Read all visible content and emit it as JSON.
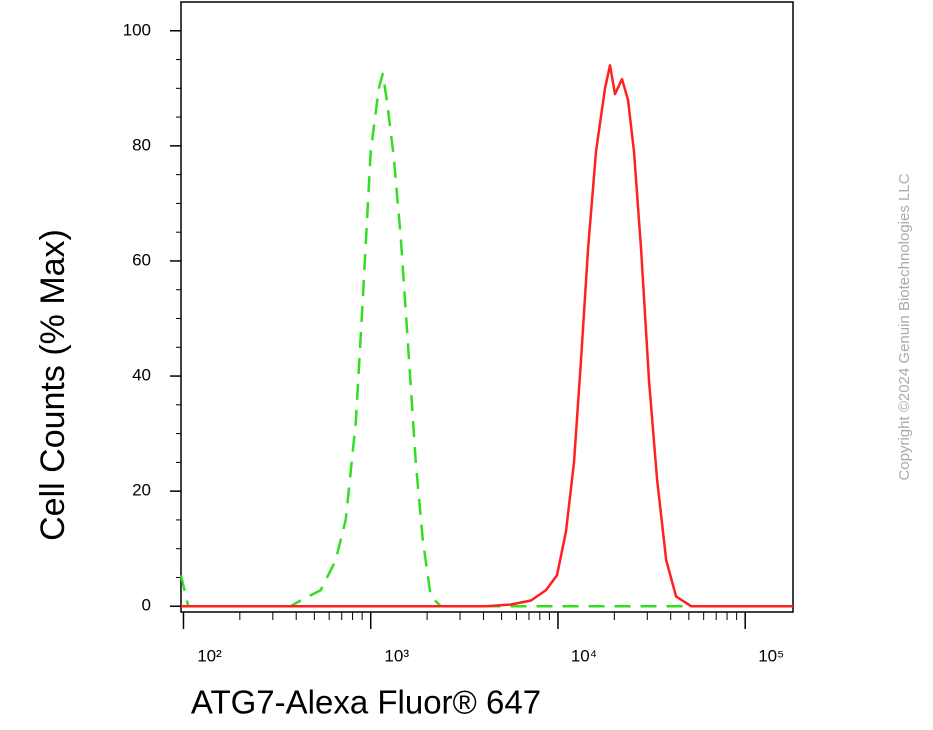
{
  "chart_data": {
    "type": "line",
    "x_label": "ATG7-Alexa Fluor® 647",
    "y_label": "Cell Counts (% Max)",
    "watermark": "Copyright ©2024 Genuin Biotechnologies LLC",
    "xscale": "log",
    "xlim": [
      97,
      180000
    ],
    "ylim": [
      -1,
      105
    ],
    "xticks": [
      {
        "value": 100,
        "label": "10²"
      },
      {
        "value": 1000,
        "label": "10³"
      },
      {
        "value": 10000,
        "label": "10⁴"
      },
      {
        "value": 100000,
        "label": "10⁵"
      }
    ],
    "minor_xticks": [
      200,
      300,
      400,
      500,
      600,
      700,
      800,
      900,
      2000,
      3000,
      4000,
      5000,
      6000,
      7000,
      8000,
      9000,
      20000,
      30000,
      40000,
      50000,
      60000,
      70000,
      80000,
      90000
    ],
    "yticks": [
      0,
      20,
      40,
      60,
      80,
      100
    ],
    "minor_yticks": [
      5,
      10,
      15,
      25,
      30,
      35,
      45,
      50,
      55,
      65,
      70,
      75,
      85,
      90,
      95
    ],
    "series": [
      {
        "color": "#33dd22",
        "line_style": "dashed",
        "x": [
          97,
          106,
          228,
          373,
          422,
          541,
          650,
          735,
          832,
          906,
          1000,
          1104,
          1159,
          1218,
          1328,
          1447,
          1577,
          1740,
          1898,
          2094,
          2368,
          180000
        ],
        "values": [
          5.4,
          0,
          0,
          0,
          1,
          2.8,
          8,
          15,
          32,
          53,
          79,
          90,
          92.5,
          88,
          78,
          64,
          46,
          25,
          11.5,
          1.7,
          0,
          0
        ]
      },
      {
        "color": "#ff2020",
        "line_style": "solid",
        "x": [
          97,
          4120,
          5610,
          7180,
          8630,
          9880,
          11040,
          12180,
          13290,
          14470,
          15960,
          17830,
          18970,
          20170,
          21990,
          23670,
          25480,
          27790,
          30670,
          33840,
          37830,
          42760,
          51410,
          180000
        ],
        "values": [
          0,
          0,
          0.3,
          1,
          2.8,
          5.4,
          13,
          25,
          43,
          62,
          79,
          90,
          94,
          89,
          91.6,
          88,
          79,
          62,
          39,
          22,
          8,
          1.7,
          0,
          0
        ]
      }
    ]
  }
}
